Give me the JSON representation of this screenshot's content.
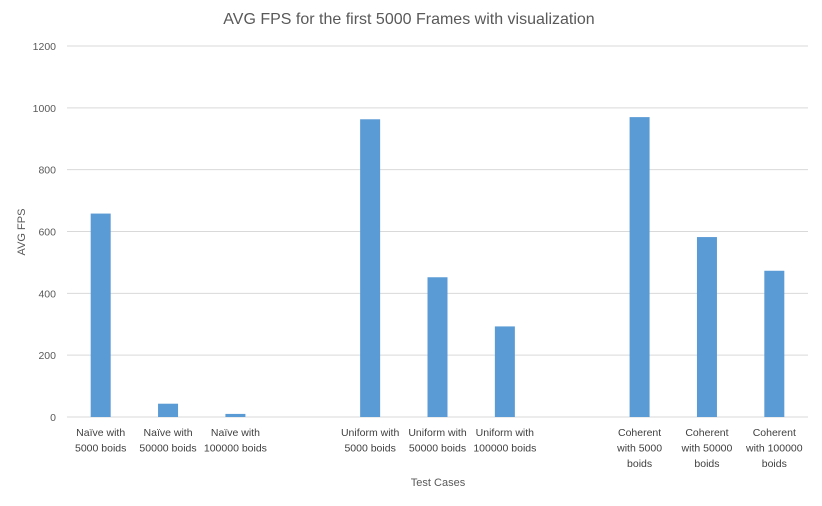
{
  "chart_data": {
    "type": "bar",
    "title": "AVG FPS for the first 5000 Frames with visualization",
    "xlabel": "Test Cases",
    "ylabel": "AVG FPS",
    "ylim": [
      0,
      1200
    ],
    "yticks": [
      0,
      200,
      400,
      600,
      800,
      1000,
      1200
    ],
    "grid": true,
    "bar_color": "#5b9bd5",
    "categories": [
      [
        "Naïve with",
        "5000 boids"
      ],
      [
        "Naïve with",
        "50000 boids"
      ],
      [
        "Naïve with",
        "100000 boids"
      ],
      [],
      [
        "Uniform with",
        "5000 boids"
      ],
      [
        "Uniform with",
        "50000 boids"
      ],
      [
        "Uniform with",
        "100000 boids"
      ],
      [],
      [
        "Coherent",
        "with 5000",
        "boids"
      ],
      [
        "Coherent",
        "with 50000",
        "boids"
      ],
      [
        "Coherent",
        "with 100000",
        "boids"
      ]
    ],
    "values": [
      658,
      43,
      10,
      null,
      963,
      452,
      293,
      null,
      970,
      582,
      473
    ]
  }
}
